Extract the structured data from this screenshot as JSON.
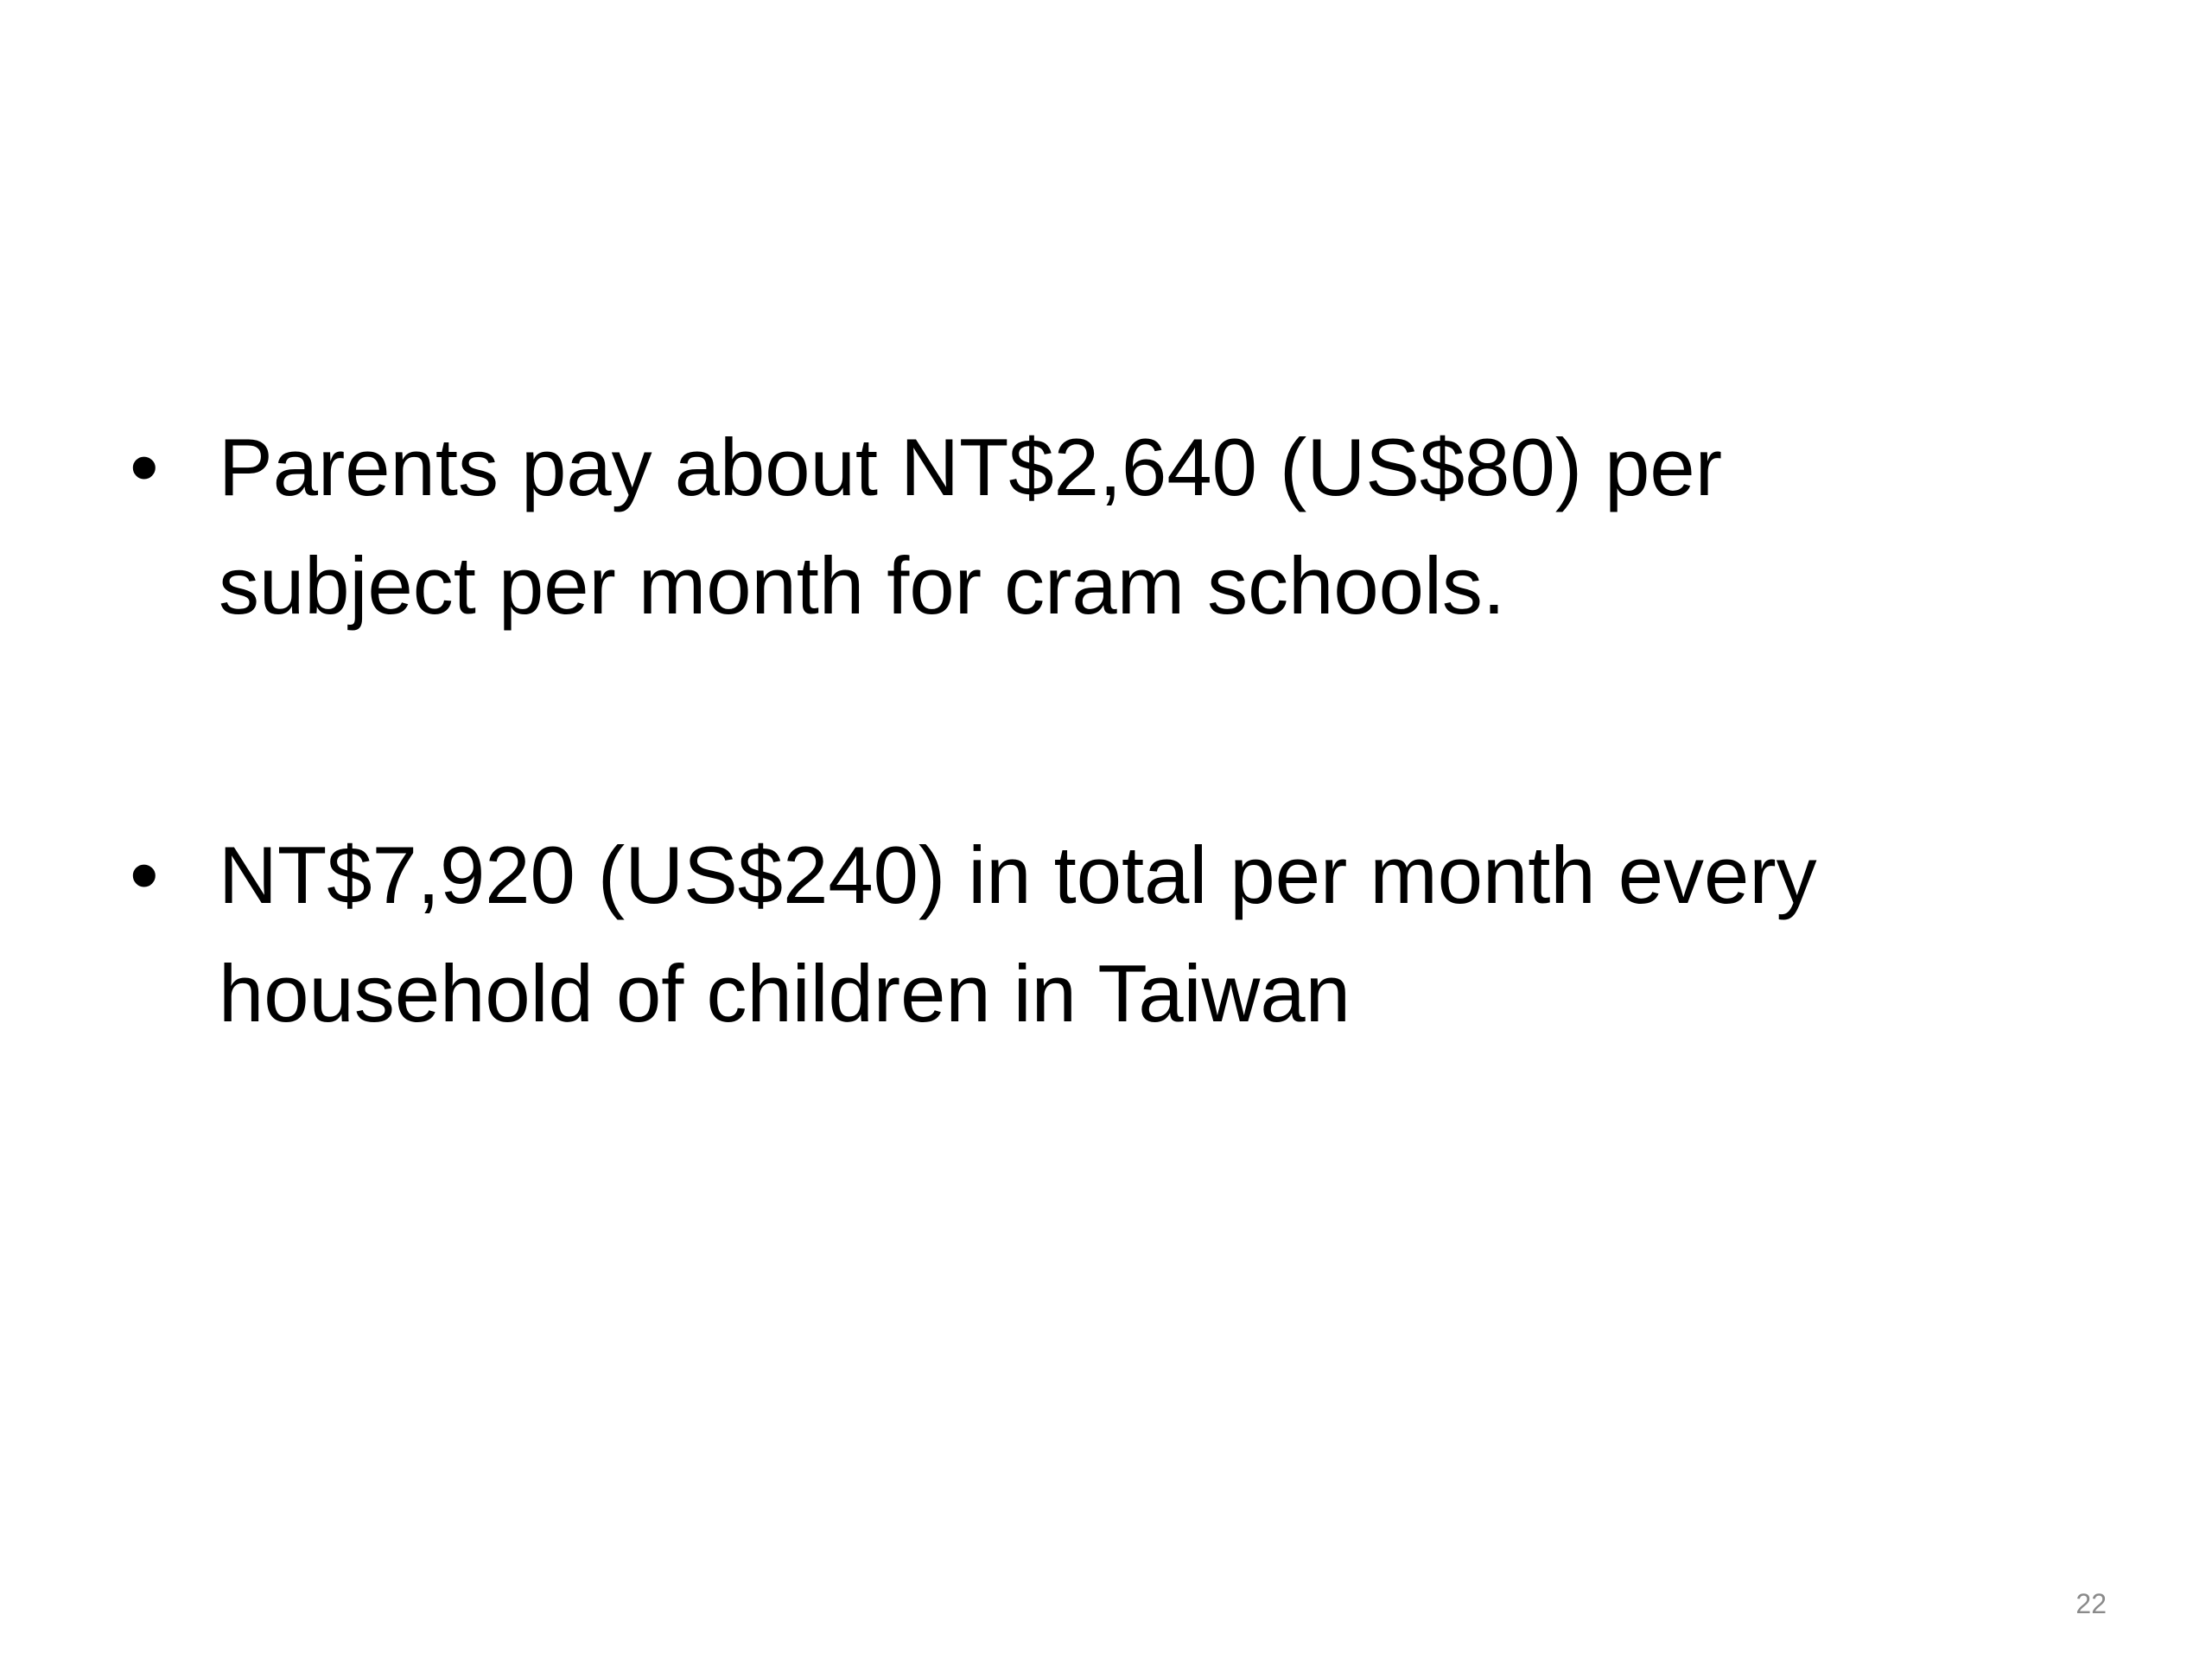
{
  "slide": {
    "bullets": [
      {
        "lines": [
          "Parents pay about NT$2,640 (US$80) per",
          "subject per month for cram schools."
        ]
      },
      {
        "lines": [
          "NT$7,920 (US$240) in total per month every",
          "household of children in Taiwan"
        ]
      }
    ],
    "bullet_symbol": "•",
    "page_number": "22"
  }
}
